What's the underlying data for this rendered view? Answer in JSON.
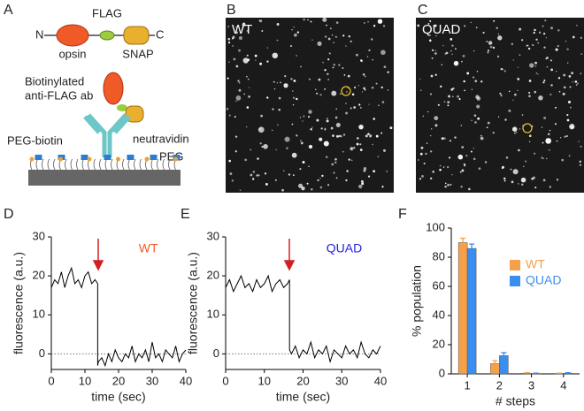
{
  "panel_labels": [
    "A",
    "B",
    "C",
    "D",
    "E",
    "F"
  ],
  "schematic": {
    "n_term": "N",
    "c_term": "C",
    "flag": "FLAG",
    "opsin": "opsin",
    "snap": "SNAP",
    "antibody": [
      "Biotinylated",
      "anti-FLAG ab"
    ],
    "peg_biotin": "PEG-biotin",
    "neutravidin": "neutravidin",
    "peg": "PEG"
  },
  "images": [
    {
      "label": "WT"
    },
    {
      "label": "QUAD"
    }
  ],
  "chart_data": [
    {
      "type": "line",
      "xlabel": "time (sec)",
      "ylabel": "fluorescence (a.u.)",
      "annotation": "WT",
      "annotation_color": "#f05a28",
      "color": "#000000",
      "x": [
        0,
        1,
        2,
        3,
        4,
        5,
        6,
        7,
        8,
        9,
        10,
        11,
        12,
        13,
        13.8,
        13.8,
        14,
        15,
        16,
        17,
        18,
        19,
        20,
        21,
        22,
        23,
        24,
        25,
        26,
        27,
        28,
        29,
        30,
        31,
        32,
        33,
        34,
        35,
        36,
        37,
        38,
        39,
        40
      ],
      "values": [
        17,
        19,
        18,
        21,
        17,
        20,
        22,
        18,
        19,
        17,
        20,
        21,
        18,
        19,
        18,
        -3,
        -2,
        -1,
        -3,
        0,
        -2,
        1,
        -1,
        -2,
        0,
        -1,
        2,
        -2,
        0,
        -1,
        1,
        -2,
        3,
        -1,
        0,
        -2,
        1,
        0,
        -1,
        2,
        -2,
        0,
        1
      ],
      "xlim": [
        0,
        40
      ],
      "ylim": [
        -4,
        30
      ],
      "xticks": [
        0,
        10,
        20,
        30,
        40
      ],
      "yticks": [
        0,
        10,
        20,
        30
      ]
    },
    {
      "type": "line",
      "xlabel": "time (sec)",
      "ylabel": "fluorescence (a.u.)",
      "annotation": "QUAD",
      "annotation_color": "#2222dd",
      "color": "#000000",
      "x": [
        0,
        1,
        2,
        3,
        4,
        5,
        6,
        7,
        8,
        9,
        10,
        11,
        12,
        13,
        14,
        15,
        16,
        16.5,
        16.5,
        17,
        18,
        19,
        20,
        21,
        22,
        23,
        24,
        25,
        26,
        27,
        28,
        29,
        30,
        31,
        32,
        33,
        34,
        35,
        36,
        37,
        38,
        39,
        40
      ],
      "values": [
        17,
        19,
        16,
        18,
        20,
        17,
        18,
        16,
        19,
        17,
        18,
        20,
        16,
        18,
        19,
        17,
        18,
        19,
        1,
        0,
        2,
        -1,
        1,
        0,
        3,
        -1,
        1,
        0,
        2,
        -2,
        1,
        0,
        -1,
        2,
        0,
        1,
        -1,
        3,
        0,
        -1,
        1,
        0,
        2
      ],
      "xlim": [
        0,
        40
      ],
      "ylim": [
        -4,
        30
      ],
      "xticks": [
        0,
        10,
        20,
        30,
        40
      ],
      "yticks": [
        0,
        10,
        20,
        30
      ]
    },
    {
      "type": "bar",
      "xlabel": "# steps",
      "ylabel": "% population",
      "categories": [
        "1",
        "2",
        "3",
        "4"
      ],
      "series": [
        {
          "name": "WT",
          "color": "#f5a04a",
          "values": [
            90,
            7,
            0.5,
            0.3
          ],
          "errors": [
            3,
            2,
            0.3,
            0.2
          ]
        },
        {
          "name": "QUAD",
          "color": "#3a8ef0",
          "values": [
            86,
            12.5,
            0.3,
            0.5
          ],
          "errors": [
            3,
            2,
            0.2,
            0.3
          ]
        }
      ],
      "ylim": [
        0,
        100
      ],
      "yticks": [
        0,
        20,
        40,
        60,
        80,
        100
      ]
    }
  ]
}
